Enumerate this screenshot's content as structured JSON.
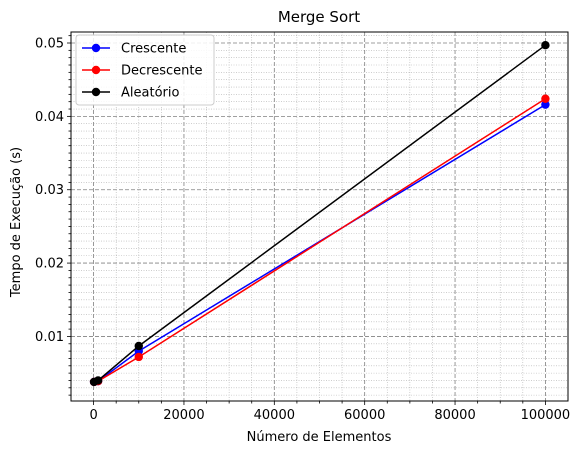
{
  "chart_data": {
    "type": "line",
    "title": "Merge Sort",
    "xlabel": "Número de Elementos",
    "ylabel": "Tempo de Execução (s)",
    "xlim": [
      -5000,
      105000
    ],
    "ylim": [
      0.0012,
      0.0515
    ],
    "xticks": [
      0,
      20000,
      40000,
      60000,
      80000,
      100000
    ],
    "xtick_labels": [
      "0",
      "20000",
      "40000",
      "60000",
      "80000",
      "100000"
    ],
    "yticks": [
      0.01,
      0.02,
      0.03,
      0.04,
      0.05
    ],
    "ytick_labels": [
      "0.01",
      "0.02",
      "0.03",
      "0.04",
      "0.05"
    ],
    "grid": true,
    "minor_grid": true,
    "legend_position": "upper-left",
    "x": [
      100,
      1000,
      10000,
      100000
    ],
    "series": [
      {
        "name": "Crescente",
        "color": "#0000ff",
        "values": [
          0.0038,
          0.0039,
          0.008,
          0.0416
        ]
      },
      {
        "name": "Decrescente",
        "color": "#ff0000",
        "values": [
          0.0038,
          0.0039,
          0.0072,
          0.0424
        ]
      },
      {
        "name": "Aleatório",
        "color": "#000000",
        "values": [
          0.0038,
          0.004,
          0.0087,
          0.0497
        ]
      }
    ]
  }
}
